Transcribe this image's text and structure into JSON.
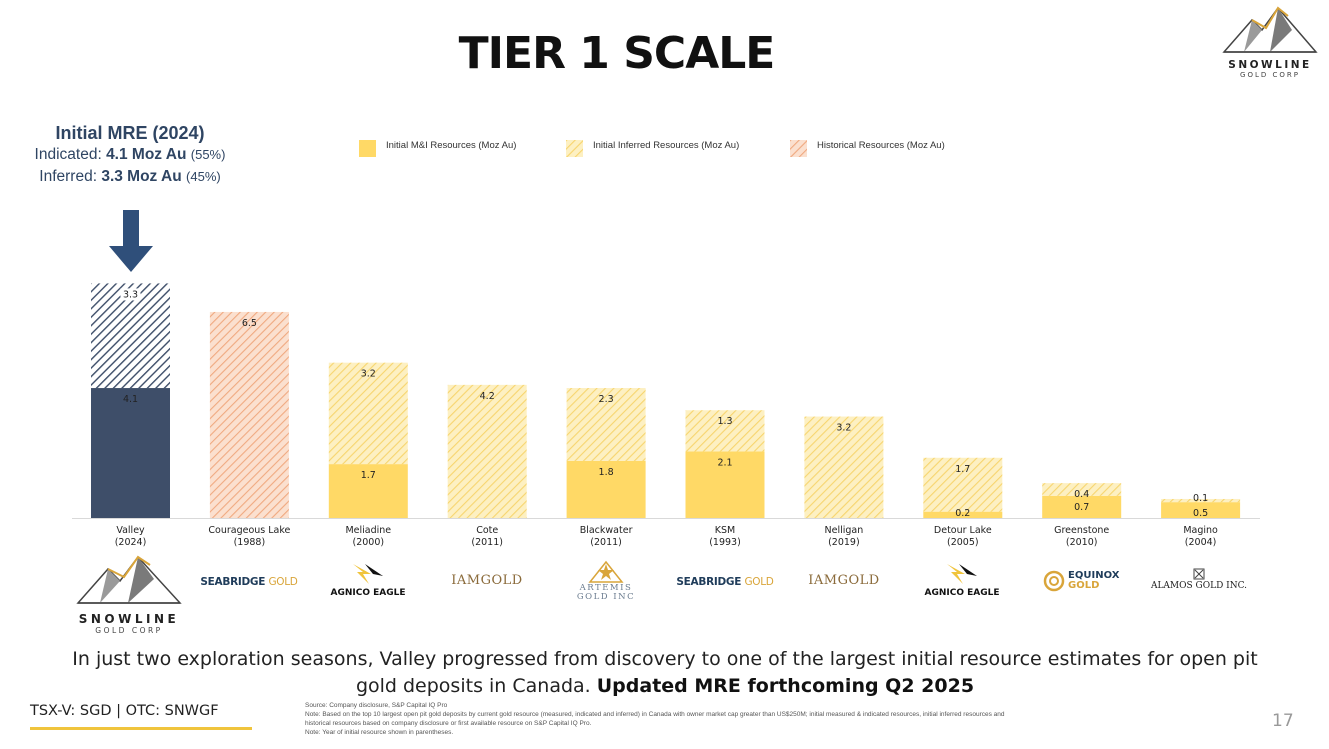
{
  "title": "TIER 1 SCALE",
  "logo": {
    "brand": "SNOWLINE",
    "sub": "GOLD CORP"
  },
  "mre": {
    "heading": "Initial MRE (2024)",
    "indicated_label": "Indicated:",
    "indicated_value": "4.1 Moz Au",
    "indicated_pct": "(55%)",
    "inferred_label": "Inferred:",
    "inferred_value": "3.3 Moz Au",
    "inferred_pct": "(45%)"
  },
  "legend": {
    "mi": "Initial M&I Resources (Moz Au)",
    "inferred": "Initial Inferred Resources (Moz Au)",
    "historical": "Historical Resources (Moz Au)"
  },
  "colors": {
    "mi": "#ffd966",
    "inferred": "#fce9a6",
    "historical": "#f4b183",
    "valley": "#3e4e69",
    "accent": "#f0c43c"
  },
  "chart_data": {
    "type": "bar",
    "stacked": true,
    "title": "",
    "xlabel": "",
    "ylabel": "",
    "ylim": [
      0,
      8
    ],
    "categories": [
      "Valley\n(2024)",
      "Courageous Lake\n(1988)",
      "Meliadine\n(2000)",
      "Cote\n(2011)",
      "Blackwater\n(2011)",
      "KSM\n(1993)",
      "Nelligan\n(2019)",
      "Detour Lake\n(2005)",
      "Greenstone\n(2010)",
      "Magino\n(2004)"
    ],
    "series": [
      {
        "name": "Initial M&I Resources (Moz Au)",
        "values": [
          4.1,
          0,
          1.7,
          0,
          1.8,
          2.1,
          0,
          0.2,
          0.7,
          0.5
        ]
      },
      {
        "name": "Initial Inferred Resources (Moz Au)",
        "values": [
          3.3,
          0,
          3.2,
          4.2,
          2.3,
          1.3,
          3.2,
          1.7,
          0.4,
          0.1
        ]
      },
      {
        "name": "Historical Resources (Moz Au)",
        "values": [
          0,
          6.5,
          0,
          0,
          0,
          0,
          0,
          0,
          0,
          0
        ]
      }
    ]
  },
  "companies": {
    "seabridge1": {
      "name": "SEABRIDGE",
      "suffix": "GOLD"
    },
    "agnico1": "AGNICO EAGLE",
    "iamgold1": "IAMGOLD",
    "artemis": {
      "line1": "ARTEMIS",
      "line2": "GOLD INC"
    },
    "seabridge2": {
      "name": "SEABRIDGE",
      "suffix": "GOLD"
    },
    "iamgold2": "IAMGOLD",
    "agnico2": "AGNICO EAGLE",
    "equinox": {
      "line1": "EQUINOX",
      "line2": "GOLD"
    },
    "alamos": "ALAMOS GOLD INC."
  },
  "summary": {
    "text": "In just two exploration seasons, Valley progressed from discovery to one of the largest initial resource estimates for open pit gold deposits in Canada.",
    "bold": "Updated MRE forthcoming Q2 2025"
  },
  "ticker": "TSX-V: SGD | OTC: SNWGF",
  "footnote": {
    "source": "Source: Company disclosure, S&P Capital IQ Pro",
    "note1": "Note: Based on the top 10 largest open pit gold deposits by current gold resource (measured, indicated and inferred) in Canada with owner market cap greater than US$250M; initial measured & indicated resources, initial inferred resources and historical resources based on company disclosure or first available resource on S&P Capital IQ Pro.",
    "note2": "Note: Year of initial resource shown in parentheses."
  },
  "page_number": "17"
}
